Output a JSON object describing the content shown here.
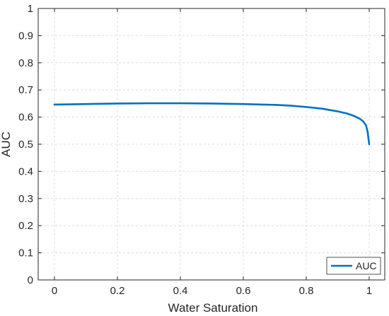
{
  "chart_data": {
    "type": "line",
    "title": "",
    "xlabel": "Water Saturation",
    "ylabel": "AUC",
    "xlim": [
      0,
      1
    ],
    "ylim": [
      0,
      1
    ],
    "xticks": [
      0,
      0.2,
      0.4,
      0.6,
      0.8,
      1
    ],
    "xtick_labels": [
      "0",
      "0.2",
      "0.4",
      "0.6",
      "0.8",
      "1"
    ],
    "yticks": [
      0,
      0.1,
      0.2,
      0.3,
      0.4,
      0.5,
      0.6,
      0.7,
      0.8,
      0.9,
      1
    ],
    "ytick_labels": [
      "0",
      "0.1",
      "0.2",
      "0.3",
      "0.4",
      "0.5",
      "0.6",
      "0.7",
      "0.8",
      "0.9",
      "1"
    ],
    "grid": true,
    "legend_position": "bottom-right",
    "series": [
      {
        "name": "AUC",
        "color": "#0072BD",
        "x": [
          0,
          0.05,
          0.1,
          0.2,
          0.3,
          0.4,
          0.5,
          0.6,
          0.7,
          0.75,
          0.8,
          0.85,
          0.9,
          0.93,
          0.95,
          0.97,
          0.98,
          0.99,
          0.995,
          1.0
        ],
        "y": [
          0.646,
          0.647,
          0.648,
          0.65,
          0.651,
          0.651,
          0.65,
          0.648,
          0.645,
          0.642,
          0.637,
          0.631,
          0.621,
          0.613,
          0.605,
          0.594,
          0.585,
          0.57,
          0.545,
          0.5
        ]
      }
    ]
  }
}
